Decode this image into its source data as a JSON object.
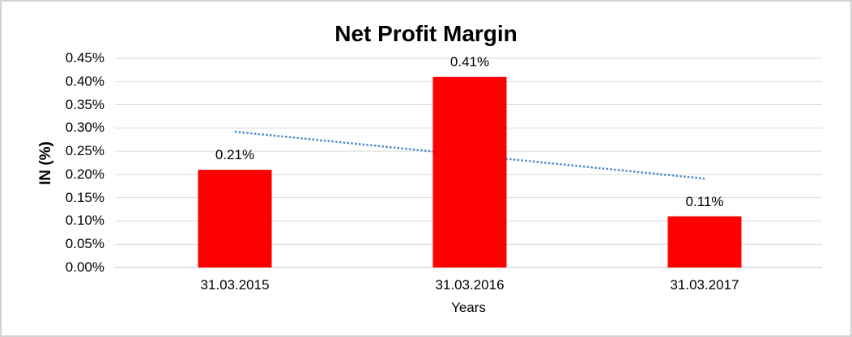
{
  "canvas": {
    "background": "#FFFFFF",
    "border_color": "#D3D3D3"
  },
  "chart_data": {
    "type": "bar",
    "title": "Net Profit Margin",
    "xlabel": "Years",
    "ylabel": "IN (%)",
    "categories": [
      "31.03.2015",
      "31.03.2016",
      "31.03.2017"
    ],
    "values": [
      0.21,
      0.41,
      0.11
    ],
    "data_labels": [
      "0.21%",
      "0.41%",
      "0.11%"
    ],
    "ylim": [
      0,
      0.45
    ],
    "ytick_step": 0.05,
    "ytick_labels": [
      "0.00%",
      "0.05%",
      "0.10%",
      "0.15%",
      "0.20%",
      "0.25%",
      "0.30%",
      "0.35%",
      "0.40%",
      "0.45%"
    ],
    "grid": true,
    "legend": "none",
    "colors": {
      "bar": "#FF0000",
      "gridline": "#D9D9D9",
      "axis_line": "#C6C6C6",
      "trendline": "#5089C9",
      "text": "#000000"
    },
    "trendline": {
      "type": "linear",
      "style": "dotted",
      "start_value": 0.292,
      "end_value": 0.191
    }
  }
}
